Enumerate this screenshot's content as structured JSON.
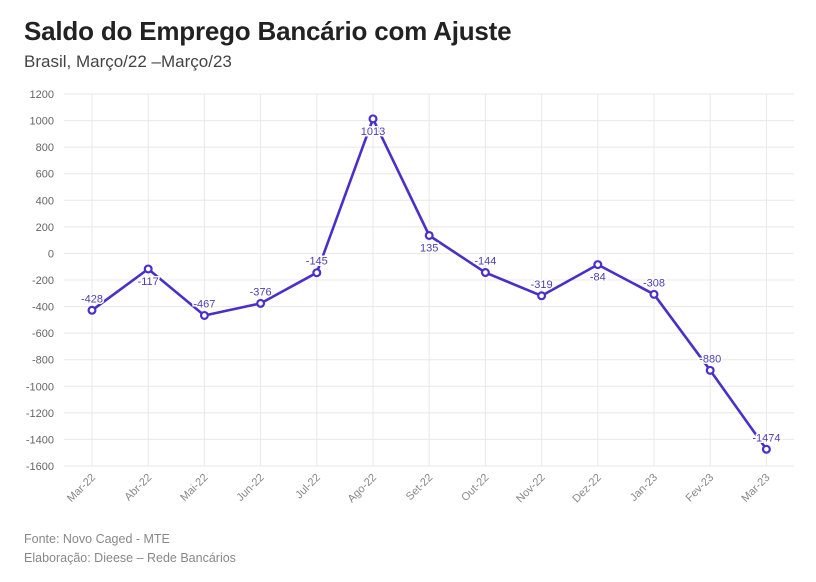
{
  "header": {
    "title": "Saldo do Emprego Bancário com Ajuste",
    "subtitle": "Brasil, Março/22 –Março/23"
  },
  "footer": {
    "source": "Fonte: Novo Caged - MTE",
    "credit": "Elaboração: Dieese – Rede Bancários"
  },
  "colors": {
    "line": "#4b2fc9",
    "grid": "#e8e8e8",
    "label": "#4a3fb0"
  },
  "chart_data": {
    "type": "line",
    "title": "Saldo do Emprego Bancário com Ajuste",
    "subtitle": "Brasil, Março/22 –Março/23",
    "xlabel": "",
    "ylabel": "",
    "categories": [
      "Mar-22",
      "Abr-22",
      "Mai-22",
      "Jun-22",
      "Jul-22",
      "Ago-22",
      "Set-22",
      "Out-22",
      "Nov-22",
      "Dez-22",
      "Jan-23",
      "Fev-23",
      "Mar-23"
    ],
    "series": [
      {
        "values": [
          -428,
          -117,
          -467,
          -376,
          -145,
          1013,
          135,
          -144,
          -319,
          -84,
          -308,
          -880,
          -1474
        ]
      }
    ],
    "data_labels": [
      "-428",
      "-117",
      "-467",
      "-376",
      "-145",
      "1013",
      "135",
      "-144",
      "-319",
      "-84",
      "-308",
      "-880",
      "-1474"
    ],
    "ylim": [
      -1600,
      1200
    ],
    "yticks": [
      1200,
      1000,
      800,
      600,
      400,
      200,
      0,
      -200,
      -400,
      -600,
      -800,
      -1000,
      -1200,
      -1400,
      -1600
    ],
    "grid": true,
    "legend": "none"
  }
}
